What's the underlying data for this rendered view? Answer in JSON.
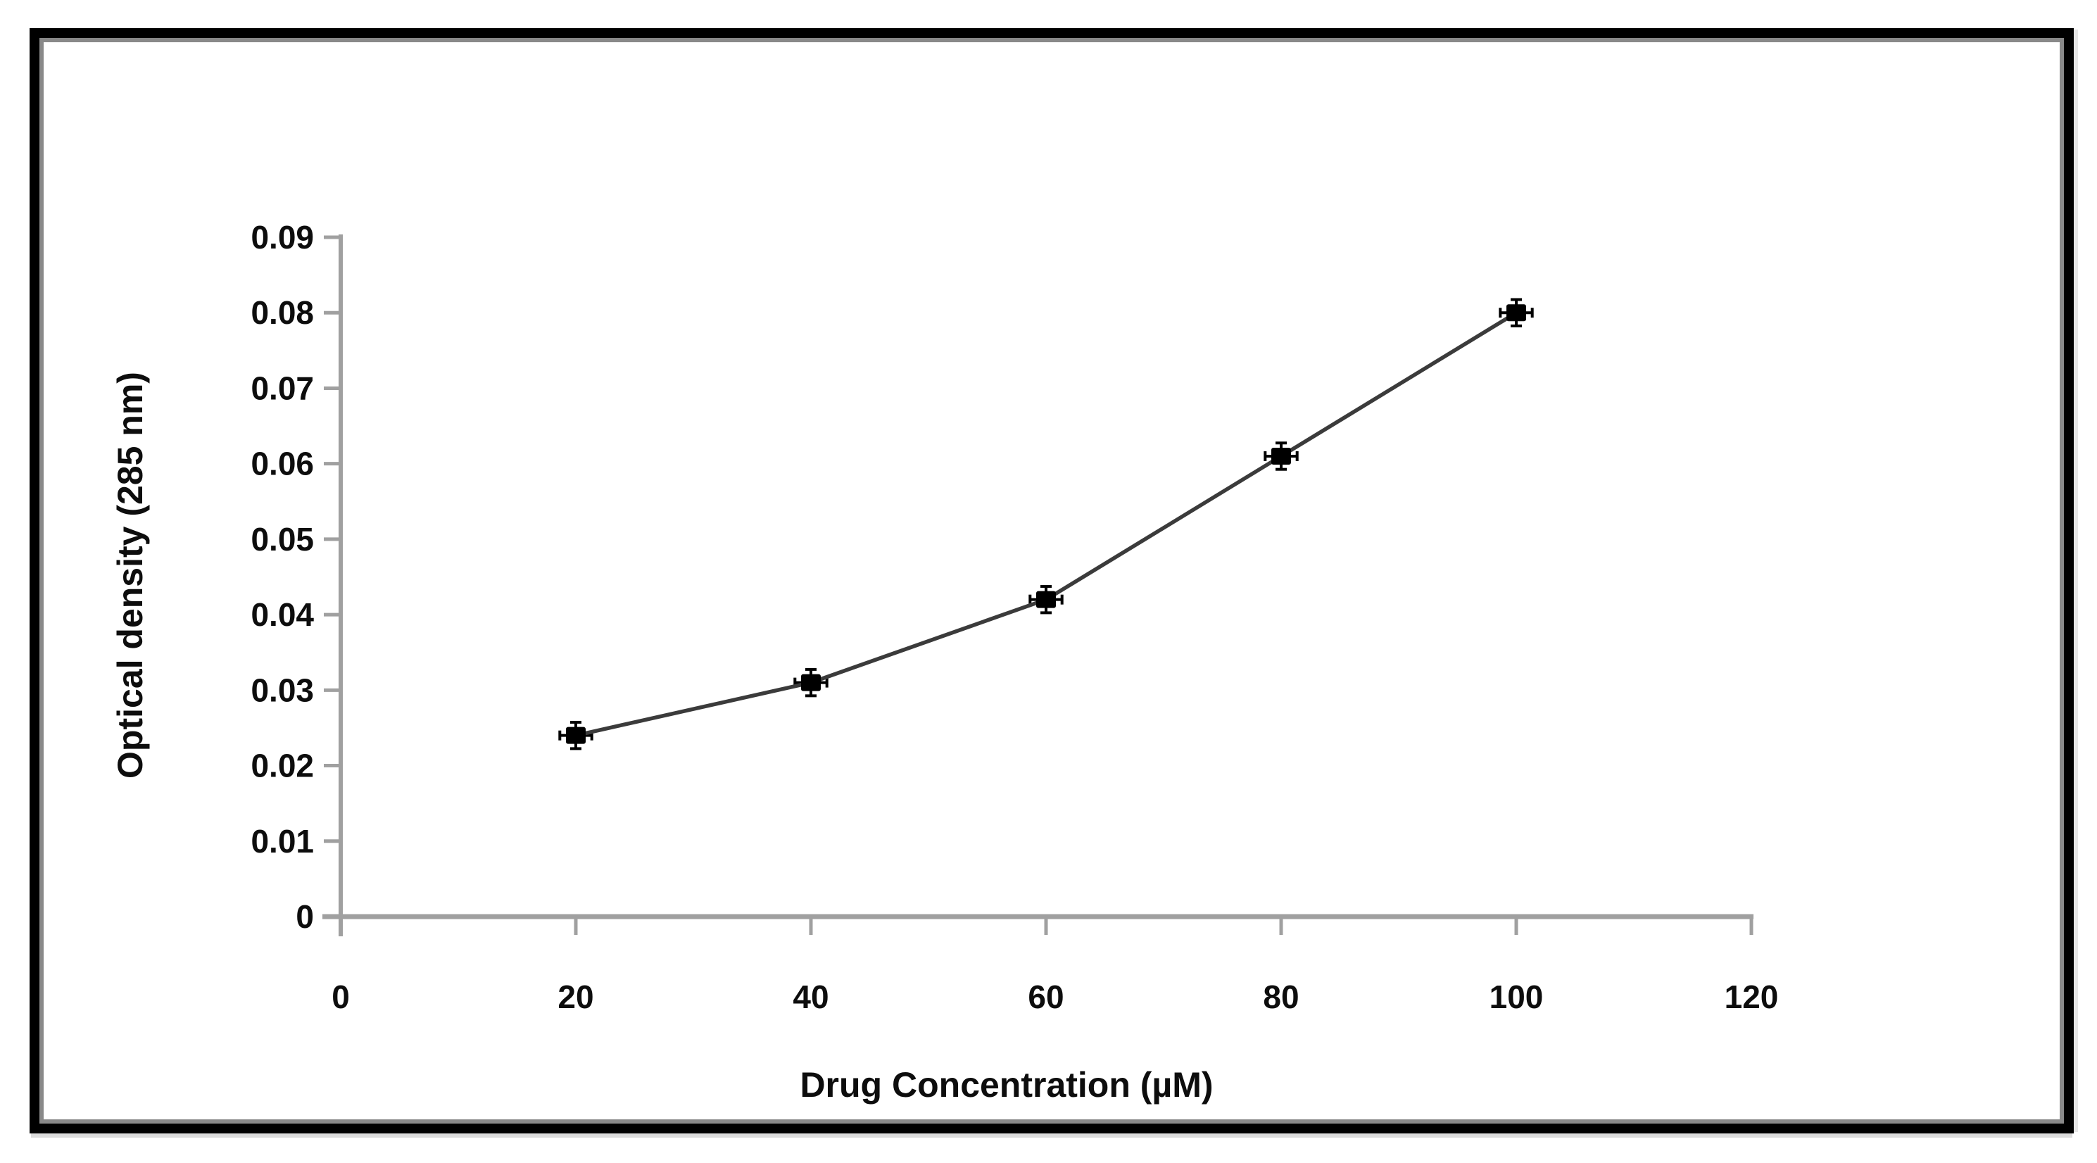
{
  "figure": {
    "background": "#ffffff",
    "frame_border_color": "#000000",
    "frame_shadow_color": "#6c6c6c"
  },
  "chart_data": {
    "type": "line",
    "title": "",
    "xlabel": "Drug Concentration (µM)",
    "ylabel": "Optical density (285 nm)",
    "x": [
      20,
      40,
      60,
      80,
      100
    ],
    "y": [
      0.024,
      0.031,
      0.042,
      0.061,
      0.08
    ],
    "y_error": 0.001,
    "x_error": 1,
    "xlim": [
      0,
      120
    ],
    "ylim": [
      0,
      0.09
    ],
    "x_tick_values": [
      0,
      20,
      40,
      60,
      80,
      100,
      120
    ],
    "x_tick_labels": [
      "0",
      "20",
      "40",
      "60",
      "80",
      "100",
      "120"
    ],
    "y_tick_values": [
      0,
      0.01,
      0.02,
      0.03,
      0.04,
      0.05,
      0.06,
      0.07,
      0.08,
      0.09
    ],
    "y_tick_labels": [
      "0",
      "0.01",
      "0.02",
      "0.03",
      "0.04",
      "0.05",
      "0.06",
      "0.07",
      "0.08",
      "0.09"
    ],
    "grid": false,
    "legend": null,
    "marker": "filled-square",
    "series_color": "#3b3b3b",
    "marker_color": "#000000",
    "axis_color": "#a0a0a0",
    "text_color": "#0d0d0d"
  }
}
